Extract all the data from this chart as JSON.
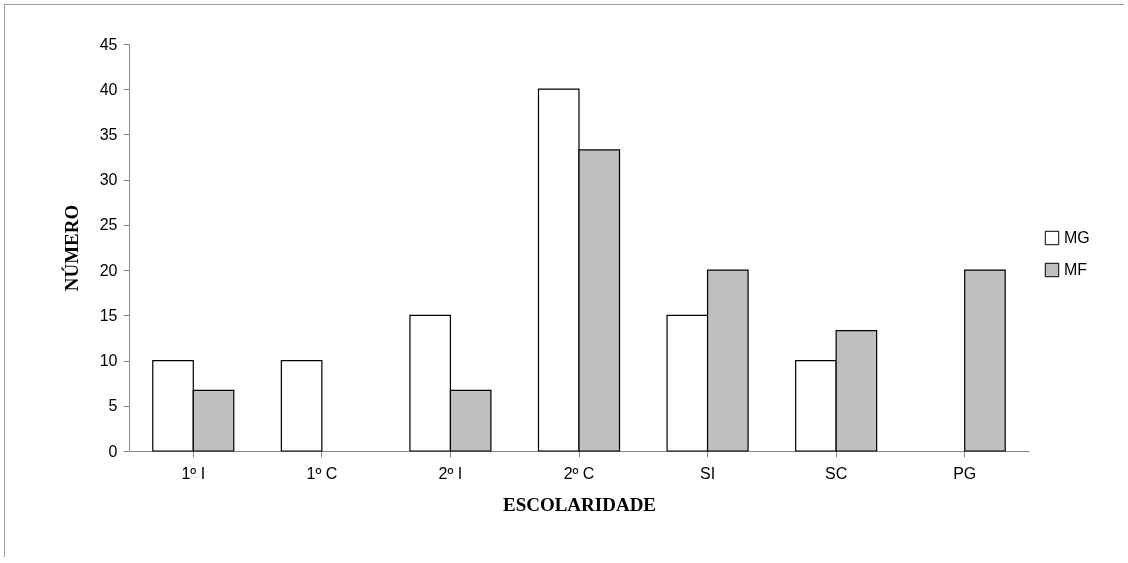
{
  "chart_data": {
    "type": "bar",
    "xlabel": "ESCOLARIDADE",
    "ylabel": "NÚMERO",
    "categories": [
      "1º I",
      "1º C",
      "2º I",
      "2º C",
      "SI",
      "SC",
      "PG"
    ],
    "series": [
      {
        "name": "MG",
        "color": "#ffffff",
        "values": [
          10,
          10,
          15,
          40,
          15,
          10,
          null
        ]
      },
      {
        "name": "MF",
        "color": "#bfbfbf",
        "values": [
          6.7,
          null,
          6.7,
          33.3,
          20,
          13.3,
          20
        ]
      }
    ],
    "ylim": [
      0,
      45
    ],
    "yticks": [
      0,
      5,
      10,
      15,
      20,
      25,
      30,
      35,
      40,
      45
    ],
    "grid": false,
    "legend": "right"
  }
}
